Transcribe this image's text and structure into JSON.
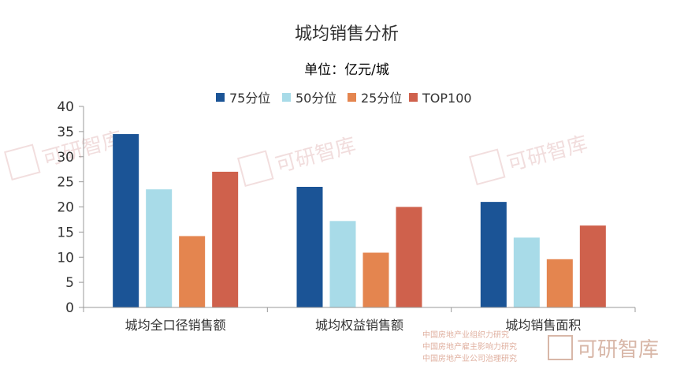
{
  "chart_data": {
    "type": "bar",
    "title": "城均销售分析",
    "subtitle": "单位：亿元/城",
    "categories": [
      "城均全口径销售额",
      "城均权益销售额",
      "城均销售面积"
    ],
    "series": [
      {
        "name": "75分位",
        "color": "#1b5496",
        "values": [
          34.5,
          24.0,
          21.0
        ]
      },
      {
        "name": "50分位",
        "color": "#a8dbe8",
        "values": [
          23.5,
          17.2,
          13.9
        ]
      },
      {
        "name": "25分位",
        "color": "#e4854f",
        "values": [
          14.2,
          10.9,
          9.6
        ]
      },
      {
        "name": "TOP100",
        "color": "#cf614c",
        "values": [
          27.0,
          20.0,
          16.3
        ]
      }
    ],
    "ylim": [
      0,
      40
    ],
    "yticks": [
      "0",
      "5",
      "10",
      "15",
      "20",
      "25",
      "30",
      "35",
      "40"
    ],
    "legend_position": "top-center",
    "grid": false
  },
  "watermark": {
    "text": "可研智库",
    "logo": "RH"
  },
  "branding": {
    "lines": [
      "中国房地产业组织力研究",
      "中国房地产雇主影响力研究",
      "中国房地产业公司治理研究"
    ],
    "name": "可研智库"
  }
}
